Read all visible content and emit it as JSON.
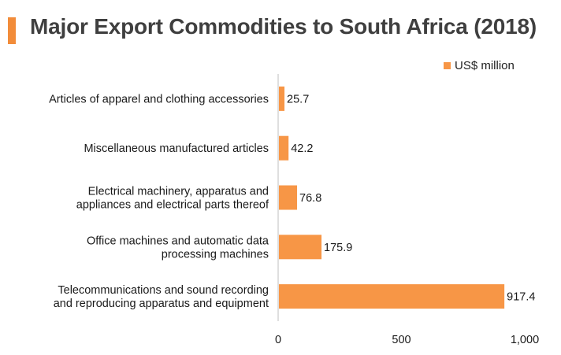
{
  "header": {
    "title": "Major Export Commodities to South Africa (2018)"
  },
  "colors": {
    "accent": "#f28c3a",
    "bar": "#f79646",
    "axis": "#bfbfbf"
  },
  "chart_data": {
    "type": "bar",
    "orientation": "horizontal",
    "title": "Major Export Commodities to South Africa (2018)",
    "categories": [
      [
        "Articles of apparel and clothing accessories"
      ],
      [
        "Miscellaneous manufactured articles"
      ],
      [
        "Electrical machinery, apparatus and",
        "appliances and electrical parts thereof"
      ],
      [
        "Office machines and automatic data",
        "processing machines"
      ],
      [
        "Telecommunications and sound recording",
        "and reproducing apparatus and equipment"
      ]
    ],
    "series": [
      {
        "name": "US$ million",
        "values": [
          25.7,
          42.2,
          76.8,
          175.9,
          917.4
        ]
      }
    ],
    "value_labels": [
      "25.7",
      "42.2",
      "76.8",
      "175.9",
      "917.4"
    ],
    "xlim": [
      0,
      1000
    ],
    "xticks": [
      0,
      500,
      1000
    ],
    "xtick_labels": [
      "0",
      "500",
      "1,000"
    ],
    "legend_position": "top-right",
    "grid": false
  }
}
